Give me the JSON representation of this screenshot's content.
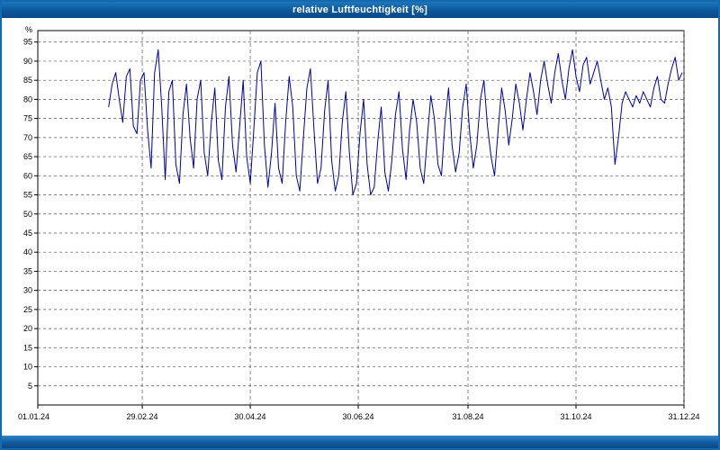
{
  "window": {
    "title": "relative Luftfeuchtigkeit [%]"
  },
  "chart_data": {
    "type": "line",
    "title": "relative Luftfeuchtigkeit [%]",
    "xlabel": "",
    "ylabel": "%",
    "ylim": [
      0,
      98
    ],
    "grid": "dashed",
    "legend": "none",
    "line_color": "#0000a0",
    "grid_color": "#555555",
    "y_ticks": [
      5,
      10,
      15,
      20,
      25,
      30,
      35,
      40,
      45,
      50,
      55,
      60,
      65,
      70,
      75,
      80,
      85,
      90,
      95
    ],
    "x_tick_labels": [
      "01.01.24",
      "29.02.24",
      "30.04.24",
      "30.06.24",
      "31.08.24",
      "31.10.24",
      "31.12.24"
    ],
    "x_tick_days": [
      1,
      60,
      121,
      182,
      244,
      305,
      366
    ],
    "x_axis_total_days": 366,
    "series": [
      {
        "name": "relative Luftfeuchtigkeit",
        "unit": "%",
        "start_day": 41,
        "step_days": 2,
        "values": [
          78,
          84,
          87,
          80,
          74,
          86,
          88,
          73,
          71,
          85,
          87,
          72,
          62,
          87,
          93,
          78,
          59,
          82,
          85,
          63,
          58,
          76,
          84,
          70,
          62,
          80,
          85,
          66,
          60,
          74,
          83,
          64,
          59,
          78,
          86,
          68,
          61,
          73,
          85,
          65,
          58,
          72,
          87,
          90,
          68,
          57,
          66,
          79,
          62,
          58,
          74,
          86,
          78,
          60,
          56,
          70,
          83,
          88,
          72,
          58,
          62,
          77,
          85,
          64,
          56,
          60,
          74,
          82,
          66,
          55,
          58,
          71,
          80,
          63,
          55,
          57,
          69,
          78,
          61,
          56,
          64,
          76,
          82,
          67,
          59,
          72,
          80,
          74,
          62,
          58,
          70,
          81,
          75,
          63,
          60,
          74,
          83,
          68,
          61,
          66,
          78,
          84,
          71,
          62,
          68,
          80,
          85,
          73,
          65,
          60,
          72,
          83,
          77,
          68,
          75,
          84,
          79,
          72,
          80,
          87,
          82,
          76,
          85,
          90,
          84,
          79,
          87,
          92,
          85,
          80,
          88,
          93,
          86,
          82,
          89,
          91,
          84,
          87,
          90,
          85,
          80,
          83,
          78,
          63,
          70,
          79,
          82,
          80,
          78,
          81,
          79,
          82,
          80,
          78,
          83,
          86,
          80,
          79,
          84,
          88,
          91,
          85,
          87
        ]
      }
    ]
  }
}
